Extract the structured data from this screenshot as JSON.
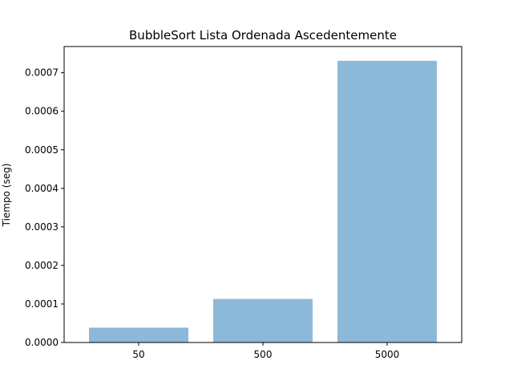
{
  "chart_data": {
    "type": "bar",
    "title": "BubbleSort Lista Ordenada Ascedentemente",
    "xlabel": "",
    "ylabel": "Tiempo (seg)",
    "categories": [
      "50",
      "500",
      "5000"
    ],
    "values": [
      3.85e-05,
      0.000113,
      0.000731
    ],
    "ylim": [
      0,
      0.000768
    ],
    "yticks": [
      0,
      0.0001,
      0.0002,
      0.0003,
      0.0004,
      0.0005,
      0.0006,
      0.0007
    ],
    "ytick_labels": [
      "0.0000",
      "0.0001",
      "0.0002",
      "0.0003",
      "0.0004",
      "0.0005",
      "0.0006",
      "0.0007"
    ],
    "bar_color": "#8db9d8",
    "grid": false
  }
}
